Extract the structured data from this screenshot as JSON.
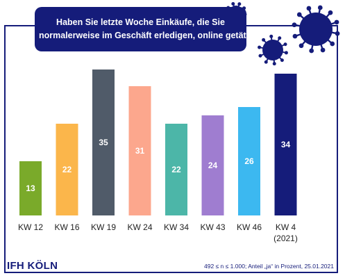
{
  "title": {
    "line1": "Haben Sie letzte Woche Einkäufe, die Sie",
    "line2": "normalerweise im Geschäft erledigen, online getätigt?"
  },
  "footer": {
    "logo": "IFH KÖLN",
    "note": "492 ≤ n ≤ 1.000; Anteil „ja“ in Prozent, 25.01.2021"
  },
  "decoration": {
    "icon": "coronavirus-icon",
    "color": "#151c7a"
  },
  "chart_data": {
    "type": "bar",
    "categories": [
      "KW 12",
      "KW 16",
      "KW 19",
      "KW 24",
      "KW 34",
      "KW 43",
      "KW 46",
      "KW 4"
    ],
    "category_sublabels": [
      "",
      "",
      "",
      "",
      "",
      "",
      "",
      "(2021)"
    ],
    "values": [
      13,
      22,
      35,
      31,
      22,
      24,
      26,
      34
    ],
    "colors": [
      "#7aaa2a",
      "#fbb64b",
      "#505b69",
      "#fca78d",
      "#4cb6a8",
      "#9f7dd0",
      "#3cb8f0",
      "#151c7a"
    ],
    "title": "Haben Sie letzte Woche Einkäufe, die Sie normalerweise im Geschäft erledigen, online getätigt?",
    "xlabel": "",
    "ylabel": "",
    "ylim": [
      0,
      35
    ],
    "grid": false,
    "legend": "none",
    "data_labels": true
  }
}
